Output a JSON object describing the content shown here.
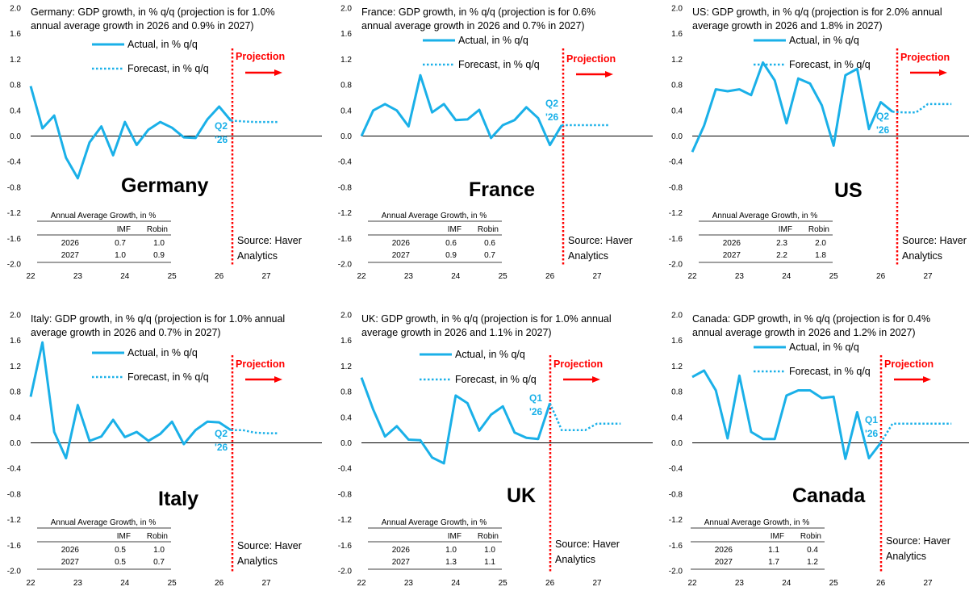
{
  "colors": {
    "series": "#1ab0e8",
    "projection": "#ff0000",
    "zero_line": "#000000"
  },
  "labels": {
    "actual": "Actual, in % q/q",
    "forecast": "Forecast, in % q/q",
    "projection": "Projection",
    "source_line1": "Source: Haver",
    "source_line2": "Analytics",
    "table_title": "Annual Average Growth, in %",
    "table_col1": "IMF",
    "table_col2": "Robin"
  },
  "chart_data": [
    {
      "type": "line",
      "country": "Germany",
      "title_line1": "Germany: GDP growth, in % q/q (projection is for 1.0%",
      "title_line2": "annual average growth in 2026 and 0.9% in 2027)",
      "ylim": [
        -2.0,
        2.0
      ],
      "yticks": [
        "2.0",
        "1.6",
        "1.2",
        "0.8",
        "0.4",
        "0.0",
        "-0.4",
        "-0.8",
        "-1.2",
        "-1.6",
        "-2.0"
      ],
      "xticks": [
        "22",
        "23",
        "24",
        "25",
        "26",
        "27"
      ],
      "quarter_label": [
        "Q2",
        "'26"
      ],
      "actual": [
        0.78,
        0.12,
        0.32,
        -0.34,
        -0.66,
        -0.1,
        0.15,
        -0.3,
        0.22,
        -0.14,
        0.1,
        0.22,
        0.13,
        -0.02,
        -0.03,
        0.26,
        0.46,
        0.24
      ],
      "forecast": [
        0.24,
        0.23,
        0.22,
        0.22,
        0.22
      ],
      "table": {
        "rows": [
          {
            "year": "2026",
            "imf": "0.7",
            "robin": "1.0"
          },
          {
            "year": "2027",
            "imf": "1.0",
            "robin": "0.9"
          }
        ]
      }
    },
    {
      "type": "line",
      "country": "France",
      "title_line1": "France: GDP growth, in % q/q (projection is for 0.6%",
      "title_line2": "annual average growth in 2026 and 0.7% in 2027)",
      "ylim": [
        -2.0,
        2.0
      ],
      "yticks": [
        "2.0",
        "1.6",
        "1.2",
        "0.8",
        "0.4",
        "0.0",
        "-0.4",
        "-0.8",
        "-1.2",
        "-1.6",
        "-2.0"
      ],
      "xticks": [
        "22",
        "23",
        "24",
        "25",
        "26",
        "27"
      ],
      "quarter_label": [
        "Q2",
        "'26"
      ],
      "actual": [
        0.0,
        0.4,
        0.5,
        0.4,
        0.15,
        0.95,
        0.37,
        0.5,
        0.25,
        0.26,
        0.41,
        -0.03,
        0.17,
        0.25,
        0.45,
        0.28,
        -0.14,
        0.17
      ],
      "forecast": [
        0.17,
        0.17,
        0.17,
        0.17,
        0.17
      ],
      "table": {
        "rows": [
          {
            "year": "2026",
            "imf": "0.6",
            "robin": "0.6"
          },
          {
            "year": "2027",
            "imf": "0.9",
            "robin": "0.7"
          }
        ]
      }
    },
    {
      "type": "line",
      "country": "US",
      "title_line1": "US: GDP growth, in % q/q (projection is for 2.0% annual",
      "title_line2": "average growth in 2026 and 1.8% in 2027)",
      "ylim": [
        -2.0,
        2.0
      ],
      "yticks": [
        "2.0",
        "1.6",
        "1.2",
        "0.8",
        "0.4",
        "0.0",
        "-0.4",
        "-0.8",
        "-1.2",
        "-1.6",
        "-2.0"
      ],
      "xticks": [
        "22",
        "23",
        "24",
        "25",
        "26",
        "27"
      ],
      "quarter_label": [
        "Q2",
        "'26"
      ],
      "actual": [
        -0.25,
        0.16,
        0.73,
        0.7,
        0.73,
        0.64,
        1.15,
        0.87,
        0.2,
        0.9,
        0.82,
        0.48,
        -0.15,
        0.95,
        1.05,
        0.11,
        0.53,
        0.38
      ],
      "forecast": [
        0.38,
        0.37,
        0.37,
        0.5,
        0.5,
        0.5
      ],
      "table": {
        "rows": [
          {
            "year": "2026",
            "imf": "2.3",
            "robin": "2.0"
          },
          {
            "year": "2027",
            "imf": "2.2",
            "robin": "1.8"
          }
        ]
      }
    },
    {
      "type": "line",
      "country": "Italy",
      "title_line1": "Italy: GDP growth, in % q/q (projection is for 1.0% annual",
      "title_line2": "average growth in 2026 and 0.7% in 2027)",
      "ylim": [
        -2.0,
        2.0
      ],
      "yticks": [
        "2.0",
        "1.6",
        "1.2",
        "0.8",
        "0.4",
        "0.0",
        "-0.4",
        "-0.8",
        "-1.2",
        "-1.6",
        "-2.0"
      ],
      "xticks": [
        "22",
        "23",
        "24",
        "25",
        "26",
        "27"
      ],
      "quarter_label": [
        "Q2",
        "'26"
      ],
      "actual": [
        0.72,
        1.57,
        0.17,
        -0.24,
        0.59,
        0.03,
        0.1,
        0.36,
        0.09,
        0.17,
        0.03,
        0.14,
        0.33,
        -0.02,
        0.2,
        0.33,
        0.32,
        0.2
      ],
      "forecast": [
        0.2,
        0.2,
        0.16,
        0.15,
        0.15
      ],
      "table": {
        "rows": [
          {
            "year": "2026",
            "imf": "0.5",
            "robin": "1.0"
          },
          {
            "year": "2027",
            "imf": "0.5",
            "robin": "0.7"
          }
        ]
      }
    },
    {
      "type": "line",
      "country": "UK",
      "title_line1": "UK: GDP growth, in % q/q (projection is for 1.0% annual",
      "title_line2": "average growth in 2026 and 1.1% in 2027)",
      "ylim": [
        -2.0,
        2.0
      ],
      "yticks": [
        "2.0",
        "1.6",
        "1.2",
        "0.8",
        "0.4",
        "0.0",
        "-0.4",
        "-0.8",
        "-1.2",
        "-1.6",
        "-2.0"
      ],
      "xticks": [
        "22",
        "23",
        "24",
        "25",
        "26",
        "27"
      ],
      "quarter_label": [
        "Q1",
        "'26"
      ],
      "actual": [
        1.02,
        0.52,
        0.1,
        0.26,
        0.05,
        0.04,
        -0.23,
        -0.32,
        0.74,
        0.62,
        0.19,
        0.44,
        0.57,
        0.16,
        0.08,
        0.06,
        0.62
      ],
      "forecast": [
        0.62,
        0.2,
        0.2,
        0.2,
        0.3,
        0.3,
        0.3
      ],
      "table": {
        "rows": [
          {
            "year": "2026",
            "imf": "1.0",
            "robin": "1.0"
          },
          {
            "year": "2027",
            "imf": "1.3",
            "robin": "1.1"
          }
        ]
      }
    },
    {
      "type": "line",
      "country": "Canada",
      "title_line1": "Canada: GDP growth, in % q/q (projection is for 0.4%",
      "title_line2": "annual average growth in 2026 and 1.2% in 2027)",
      "ylim": [
        -2.0,
        2.0
      ],
      "yticks": [
        "2.0",
        "1.6",
        "1.2",
        "0.8",
        "0.4",
        "0.0",
        "-0.4",
        "-0.8",
        "-1.2",
        "-1.6",
        "-2.0"
      ],
      "xticks": [
        "22",
        "23",
        "24",
        "25",
        "26",
        "27"
      ],
      "quarter_label": [
        "Q1",
        "'26"
      ],
      "actual": [
        1.03,
        1.13,
        0.82,
        0.07,
        1.05,
        0.17,
        0.06,
        0.06,
        0.74,
        0.82,
        0.82,
        0.7,
        0.72,
        -0.25,
        0.48,
        -0.24,
        0.0
      ],
      "forecast": [
        0.0,
        0.3,
        0.3,
        0.3,
        0.3,
        0.3,
        0.3
      ],
      "table": {
        "rows": [
          {
            "year": "2026",
            "imf": "1.1",
            "robin": "0.4"
          },
          {
            "year": "2027",
            "imf": "1.7",
            "robin": "1.2"
          }
        ]
      }
    }
  ]
}
